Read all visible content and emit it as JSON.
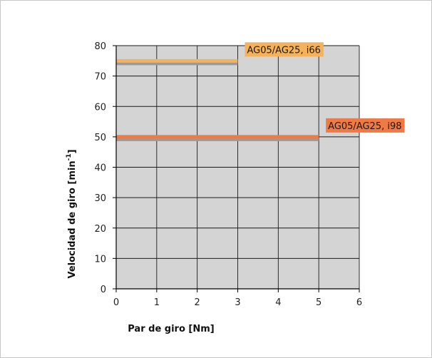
{
  "chart_data": {
    "type": "line",
    "xlabel": "Par de giro [Nm]",
    "ylabel_main": "Velocidad de giro [min",
    "ylabel_sup": "-1",
    "ylabel_tail": "]",
    "xlim": [
      0,
      6
    ],
    "ylim": [
      0,
      80
    ],
    "xticks": [
      0,
      1,
      2,
      3,
      4,
      5,
      6
    ],
    "yticks": [
      0,
      10,
      20,
      30,
      40,
      50,
      60,
      70,
      80
    ],
    "grid": true,
    "plot_background": "#d4d4d4",
    "series": [
      {
        "name": "AG05/AG25, i66",
        "color": "#f5b25c",
        "x": [
          0,
          3
        ],
        "y": [
          75,
          75
        ]
      },
      {
        "name": "AG05/AG25, i98",
        "color": "#ef7a45",
        "x": [
          0,
          5
        ],
        "y": [
          50,
          50
        ]
      }
    ]
  }
}
